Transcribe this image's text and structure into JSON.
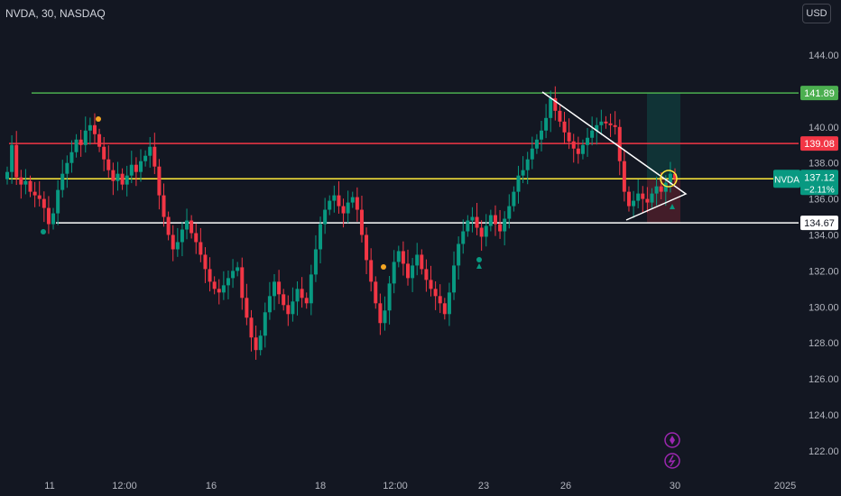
{
  "header": {
    "symbol_title": "NVDA, 30, NASDAQ"
  },
  "currency_button": "USD",
  "colors": {
    "background": "#131722",
    "up": "#089981",
    "down": "#f23645",
    "green_line": "#4caf50",
    "red_line": "#f23645",
    "yellow_line": "#ffeb3b",
    "white_line": "#ffffff",
    "scale_text": "#b2b5be",
    "marker_purple": "#9c27b0"
  },
  "icons": [
    "diamond-icon",
    "lightning-icon",
    "dividend-dot-icon",
    "triangle-marker-icon"
  ],
  "chart_data": {
    "type": "candlestick",
    "ylim": [
      121,
      145.5
    ],
    "price_ticks": [
      144,
      142,
      140,
      138,
      136,
      134,
      132,
      130,
      128,
      126,
      124,
      122
    ],
    "time_ticks": [
      "11",
      "12:00",
      "16",
      "18",
      "12:00",
      "23",
      "26",
      "30",
      "2025"
    ],
    "horizontal_levels": [
      {
        "label": "141.89",
        "value": 141.89,
        "color": "#4caf50"
      },
      {
        "label": "139.08",
        "value": 139.08,
        "color": "#f23645"
      },
      {
        "label": "137.12",
        "value": 137.12,
        "color": "#ffeb3b"
      },
      {
        "label": "134.67",
        "value": 134.67,
        "color": "#ffffff"
      }
    ],
    "last_price": {
      "symbol": "NVDA",
      "price": "137.12",
      "change": "−2.11%"
    },
    "candles_close_path": [
      137.5,
      139.0,
      137.2,
      136.8,
      137.0,
      136.4,
      136.2,
      136.0,
      135.5,
      134.6,
      135.2,
      136.5,
      137.4,
      138.0,
      138.6,
      139.3,
      139.0,
      139.8,
      140.1,
      139.6,
      138.9,
      138.2,
      137.6,
      137.0,
      137.4,
      136.8,
      137.3,
      137.9,
      137.5,
      138.1,
      138.4,
      138.9,
      137.8,
      136.2,
      135.0,
      134.0,
      133.2,
      133.6,
      134.3,
      134.8,
      134.1,
      133.6,
      132.9,
      132.1,
      131.4,
      131.0,
      130.8,
      131.2,
      131.6,
      132.0,
      132.2,
      130.5,
      129.4,
      128.3,
      127.6,
      128.4,
      129.7,
      130.6,
      131.4,
      130.7,
      130.1,
      129.6,
      130.3,
      131.0,
      130.5,
      130.2,
      131.8,
      133.2,
      134.6,
      135.4,
      135.9,
      136.2,
      135.6,
      135.2,
      135.8,
      136.1,
      135.4,
      134.0,
      132.6,
      131.4,
      130.2,
      129.1,
      129.8,
      131.3,
      132.5,
      133.1,
      132.4,
      131.6,
      132.3,
      132.9,
      132.1,
      131.5,
      131.0,
      130.6,
      130.2,
      129.6,
      130.8,
      132.3,
      133.5,
      134.2,
      134.8,
      135.0,
      134.4,
      133.9,
      134.5,
      135.1,
      134.6,
      134.2,
      134.9,
      135.6,
      136.4,
      137.3,
      137.6,
      138.2,
      138.8,
      139.3,
      139.8,
      140.5,
      141.6,
      140.9,
      140.3,
      139.7,
      139.2,
      138.8,
      138.5,
      139.0,
      139.4,
      139.8,
      140.1,
      140.3,
      140.2,
      140.1,
      140.0,
      138.1,
      136.4,
      135.6,
      135.9,
      136.3,
      136.0,
      135.8,
      136.3,
      136.7,
      136.4,
      136.9,
      137.4,
      137.12
    ]
  }
}
